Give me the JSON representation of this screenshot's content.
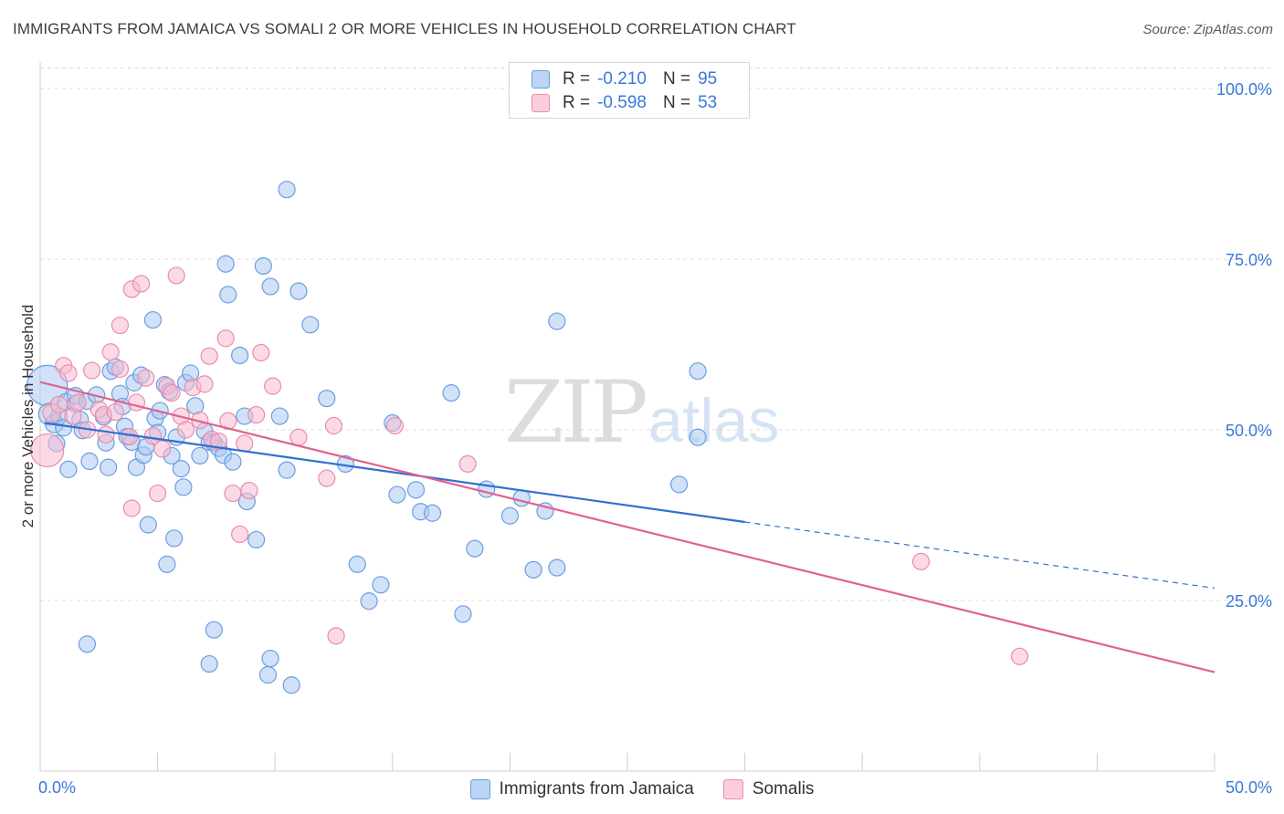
{
  "title": "IMMIGRANTS FROM JAMAICA VS SOMALI 2 OR MORE VEHICLES IN HOUSEHOLD CORRELATION CHART",
  "source": "Source: ZipAtlas.com",
  "watermark": {
    "part1": "ZIP",
    "part2": "atlas"
  },
  "colors": {
    "blue_fill": "#a9c8f2",
    "blue_stroke": "#6b9ee0",
    "blue_line": "#2f6fd3",
    "pink_fill": "#f7bcd0",
    "pink_stroke": "#ea8cab",
    "pink_line": "#e0628e",
    "tick_label": "#3a78d8",
    "grid": "#dcdcdc"
  },
  "legend_top": [
    {
      "r_label": "R =",
      "r_value": "-0.210",
      "n_label": "N =",
      "n_value": "95"
    },
    {
      "r_label": "R =",
      "r_value": "-0.598",
      "n_label": "N =",
      "n_value": "53"
    }
  ],
  "legend_bottom": [
    "Immigrants from Jamaica",
    "Somalis"
  ],
  "chart_data": {
    "type": "scatter",
    "title": "IMMIGRANTS FROM JAMAICA VS SOMALI 2 OR MORE VEHICLES IN HOUSEHOLD CORRELATION CHART",
    "xlabel": "",
    "ylabel": "2 or more Vehicles in Household",
    "xlim": [
      0,
      50
    ],
    "ylim": [
      0,
      103
    ],
    "x_ticks_labels": [
      "0.0%",
      "50.0%"
    ],
    "y_ticks": [
      25,
      50,
      75,
      100
    ],
    "y_tick_labels": [
      "25.0%",
      "50.0%",
      "75.0%",
      "100.0%"
    ],
    "grid": "horizontal dashed",
    "legend_position": "top-center",
    "series": [
      {
        "name": "Immigrants from Jamaica",
        "r": -0.21,
        "n": 95,
        "trend": {
          "x": [
            0.2,
            30.0
          ],
          "y": [
            51.0,
            36.5
          ],
          "dashed_to": [
            50.0,
            26.8
          ]
        },
        "points": [
          [
            0.3,
            56.5,
            22
          ],
          [
            0.4,
            52.3,
            12
          ],
          [
            0.6,
            50.9,
            10
          ],
          [
            0.8,
            52.0,
            9
          ],
          [
            1.0,
            50.3,
            9
          ],
          [
            1.1,
            54.1,
            9
          ],
          [
            0.7,
            48.0,
            9
          ],
          [
            1.2,
            44.2,
            9
          ],
          [
            1.5,
            53.8,
            9
          ],
          [
            1.7,
            51.5,
            9
          ],
          [
            1.5,
            55.0,
            9
          ],
          [
            1.8,
            49.9,
            9
          ],
          [
            2.0,
            54.2,
            9
          ],
          [
            2.1,
            45.4,
            9
          ],
          [
            2.4,
            55.1,
            9
          ],
          [
            2.7,
            51.9,
            9
          ],
          [
            2.8,
            48.1,
            9
          ],
          [
            2.9,
            44.5,
            9
          ],
          [
            3.0,
            58.6,
            9
          ],
          [
            3.2,
            59.2,
            9
          ],
          [
            3.4,
            55.3,
            9
          ],
          [
            3.5,
            53.4,
            9
          ],
          [
            3.6,
            50.5,
            9
          ],
          [
            3.7,
            49.0,
            9
          ],
          [
            3.9,
            48.2,
            9
          ],
          [
            4.0,
            56.9,
            9
          ],
          [
            4.1,
            44.5,
            9
          ],
          [
            4.3,
            58.0,
            9
          ],
          [
            4.4,
            46.3,
            9
          ],
          [
            4.6,
            36.1,
            9
          ],
          [
            4.8,
            66.1,
            9
          ],
          [
            4.9,
            51.7,
            9
          ],
          [
            5.0,
            49.6,
            9
          ],
          [
            5.1,
            52.8,
            9
          ],
          [
            5.3,
            56.6,
            9
          ],
          [
            5.5,
            55.6,
            9
          ],
          [
            5.6,
            46.2,
            9
          ],
          [
            5.8,
            48.9,
            9
          ],
          [
            6.0,
            44.3,
            9
          ],
          [
            6.2,
            56.9,
            9
          ],
          [
            6.4,
            58.3,
            9
          ],
          [
            6.6,
            53.5,
            9
          ],
          [
            6.8,
            46.2,
            9
          ],
          [
            7.0,
            49.8,
            9
          ],
          [
            7.2,
            48.2,
            9
          ],
          [
            7.4,
            48.1,
            9
          ],
          [
            7.6,
            47.3,
            9
          ],
          [
            7.8,
            46.3,
            9
          ],
          [
            7.9,
            74.3,
            9
          ],
          [
            8.0,
            69.8,
            9
          ],
          [
            8.2,
            45.3,
            9
          ],
          [
            8.5,
            60.9,
            9
          ],
          [
            8.7,
            52.0,
            9
          ],
          [
            8.8,
            39.5,
            9
          ],
          [
            9.2,
            33.9,
            9
          ],
          [
            9.5,
            74.0,
            9
          ],
          [
            9.8,
            71.0,
            9
          ],
          [
            10.2,
            52.0,
            9
          ],
          [
            10.5,
            44.1,
            9
          ],
          [
            11.0,
            70.3,
            9
          ],
          [
            11.5,
            65.4,
            9
          ],
          [
            12.2,
            54.6,
            9
          ],
          [
            13.0,
            45.0,
            9
          ],
          [
            13.5,
            30.3,
            9
          ],
          [
            14.0,
            24.9,
            9
          ],
          [
            14.5,
            27.3,
            9
          ],
          [
            15.0,
            51.0,
            9
          ],
          [
            15.2,
            40.5,
            9
          ],
          [
            16.0,
            41.2,
            9
          ],
          [
            16.2,
            38.0,
            9
          ],
          [
            16.7,
            37.8,
            9
          ],
          [
            17.5,
            55.4,
            9
          ],
          [
            18.0,
            23.0,
            9
          ],
          [
            18.5,
            32.6,
            9
          ],
          [
            19.0,
            41.3,
            9
          ],
          [
            20.0,
            37.4,
            9
          ],
          [
            20.5,
            40.0,
            9
          ],
          [
            21.0,
            29.5,
            9
          ],
          [
            21.5,
            38.1,
            9
          ],
          [
            22.0,
            29.8,
            9
          ],
          [
            22.0,
            65.9,
            9
          ],
          [
            28.0,
            58.6,
            9
          ],
          [
            27.2,
            42.0,
            9
          ],
          [
            28.0,
            48.9,
            9
          ],
          [
            2.0,
            18.6,
            9
          ],
          [
            5.4,
            30.3,
            9
          ],
          [
            5.7,
            34.1,
            9
          ],
          [
            7.4,
            20.7,
            9
          ],
          [
            7.2,
            15.7,
            9
          ],
          [
            9.7,
            14.1,
            9
          ],
          [
            9.8,
            16.5,
            9
          ],
          [
            10.7,
            12.6,
            9
          ],
          [
            10.5,
            85.2,
            9
          ],
          [
            4.5,
            47.5,
            9
          ],
          [
            6.1,
            41.6,
            9
          ]
        ]
      },
      {
        "name": "Somalis",
        "r": -0.598,
        "n": 53,
        "trend": {
          "x": [
            0.0,
            50.0
          ],
          "y": [
            57.0,
            14.5
          ]
        },
        "points": [
          [
            0.3,
            47.0,
            18
          ],
          [
            0.5,
            52.5,
            10
          ],
          [
            0.8,
            53.7,
            9
          ],
          [
            1.0,
            59.4,
            9
          ],
          [
            1.2,
            58.3,
            9
          ],
          [
            1.4,
            52.0,
            9
          ],
          [
            1.6,
            54.0,
            9
          ],
          [
            2.0,
            50.0,
            9
          ],
          [
            2.2,
            58.7,
            9
          ],
          [
            2.5,
            53.0,
            9
          ],
          [
            2.7,
            52.2,
            9
          ],
          [
            2.8,
            49.3,
            9
          ],
          [
            3.0,
            61.4,
            9
          ],
          [
            3.2,
            52.6,
            9
          ],
          [
            3.4,
            58.9,
            9
          ],
          [
            3.4,
            65.3,
            9
          ],
          [
            3.8,
            49.0,
            9
          ],
          [
            3.9,
            70.6,
            9
          ],
          [
            3.9,
            38.5,
            9
          ],
          [
            4.1,
            54.0,
            9
          ],
          [
            4.3,
            71.4,
            9
          ],
          [
            4.5,
            57.6,
            9
          ],
          [
            4.8,
            49.1,
            9
          ],
          [
            5.0,
            40.7,
            9
          ],
          [
            5.2,
            47.2,
            9
          ],
          [
            5.4,
            56.4,
            9
          ],
          [
            5.6,
            55.4,
            9
          ],
          [
            5.8,
            72.6,
            9
          ],
          [
            6.0,
            52.0,
            9
          ],
          [
            6.2,
            50.0,
            9
          ],
          [
            6.5,
            56.2,
            9
          ],
          [
            6.8,
            51.4,
            9
          ],
          [
            7.0,
            56.7,
            9
          ],
          [
            7.2,
            60.8,
            9
          ],
          [
            7.3,
            48.6,
            9
          ],
          [
            7.6,
            48.3,
            9
          ],
          [
            7.9,
            63.4,
            9
          ],
          [
            8.0,
            51.3,
            9
          ],
          [
            8.2,
            40.7,
            9
          ],
          [
            8.5,
            34.7,
            9
          ],
          [
            8.7,
            48.0,
            9
          ],
          [
            8.9,
            41.1,
            9
          ],
          [
            9.2,
            52.2,
            9
          ],
          [
            9.4,
            61.3,
            9
          ],
          [
            9.9,
            56.4,
            9
          ],
          [
            11.0,
            48.9,
            9
          ],
          [
            12.2,
            42.9,
            9
          ],
          [
            12.5,
            50.6,
            9
          ],
          [
            12.6,
            19.8,
            9
          ],
          [
            15.1,
            50.6,
            9
          ],
          [
            18.2,
            45.0,
            9
          ],
          [
            37.5,
            30.7,
            9
          ],
          [
            41.7,
            16.8,
            9
          ]
        ]
      }
    ]
  }
}
